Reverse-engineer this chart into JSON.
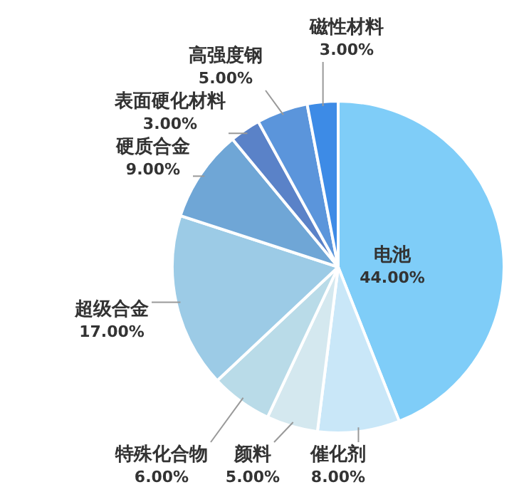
{
  "chart_data": {
    "type": "pie",
    "categories": [
      "电池",
      "催化剂",
      "颜料",
      "特殊化合物",
      "超级合金",
      "硬质合金",
      "表面硬化材料",
      "高强度钢",
      "磁性材料"
    ],
    "values": [
      44,
      8,
      5,
      6,
      17,
      9,
      3,
      5,
      3
    ],
    "value_labels": [
      "44.00%",
      "8.00%",
      "5.00%",
      "6.00%",
      "17.00%",
      "9.00%",
      "3.00%",
      "5.00%",
      "3.00%"
    ],
    "colors": [
      "#7fcdf8",
      "#c9e7f8",
      "#d4e8ef",
      "#b9dbe8",
      "#9ccbe6",
      "#6fa6d6",
      "#5a82c8",
      "#5b95db",
      "#3d8be6"
    ],
    "legend": false
  }
}
